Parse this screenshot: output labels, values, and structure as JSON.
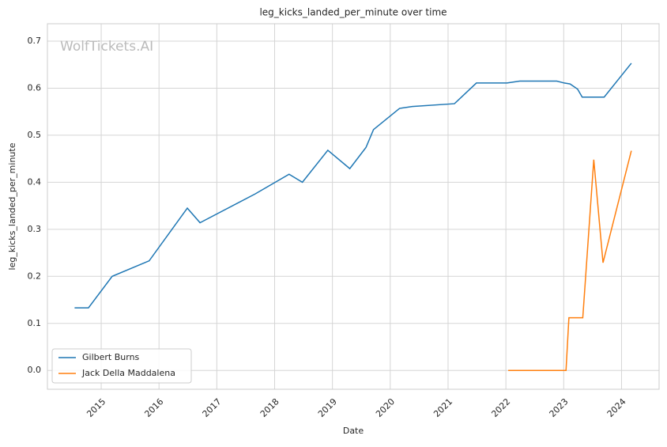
{
  "chart_data": {
    "type": "line",
    "title": "leg_kicks_landed_per_minute over time",
    "xlabel": "Date",
    "ylabel": "leg_kicks_landed_per_minute",
    "watermark": "WolfTickets.AI",
    "xlim": [
      2014.07,
      2024.65
    ],
    "ylim": [
      -0.04,
      0.737
    ],
    "xticks": [
      2015,
      2016,
      2017,
      2018,
      2019,
      2020,
      2021,
      2022,
      2023,
      2024
    ],
    "yticks": [
      {
        "value": 0,
        "label": "0.0"
      },
      0.1,
      0.2,
      0.3,
      0.4,
      0.5,
      0.6,
      0.7
    ],
    "grid": true,
    "legend": "lower left",
    "series": [
      {
        "name": "Gilbert Burns",
        "color": "#1f77b4",
        "x": [
          2014.54,
          2014.78,
          2015.19,
          2015.83,
          2016.49,
          2016.71,
          2017.66,
          2018.25,
          2018.48,
          2018.92,
          2019.3,
          2019.58,
          2019.71,
          2020.16,
          2020.38,
          2021.11,
          2021.49,
          2022.02,
          2022.24,
          2022.88,
          2023.01,
          2023.11,
          2023.24,
          2023.32,
          2023.7,
          2024.17
        ],
        "values": [
          0.133,
          0.133,
          0.2,
          0.233,
          0.345,
          0.314,
          0.375,
          0.417,
          0.4,
          0.468,
          0.429,
          0.474,
          0.512,
          0.557,
          0.561,
          0.567,
          0.611,
          0.611,
          0.615,
          0.615,
          0.611,
          0.609,
          0.598,
          0.581,
          0.581,
          0.653
        ]
      },
      {
        "name": "Jack Della Maddalena",
        "color": "#ff7f0e",
        "x": [
          2022.04,
          2023.04,
          2023.09,
          2023.33,
          2023.52,
          2023.68,
          2024.17
        ],
        "values": [
          0,
          0,
          0.112,
          0.112,
          0.448,
          0.229,
          0.467
        ]
      }
    ]
  }
}
